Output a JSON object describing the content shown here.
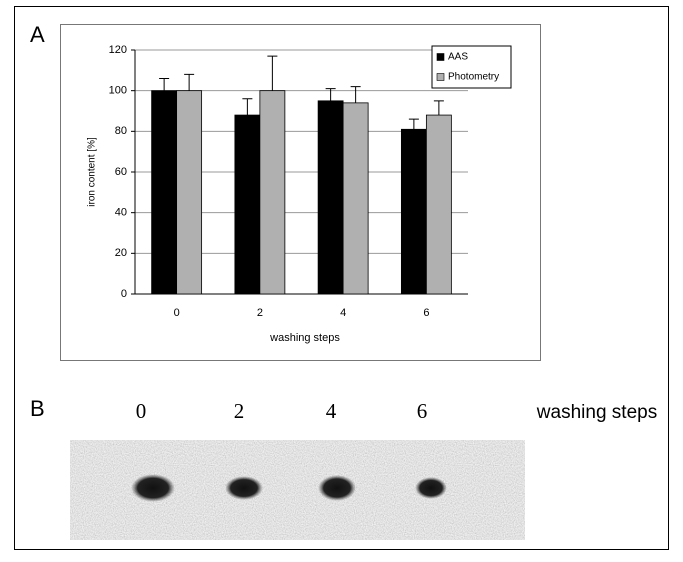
{
  "chart_data": {
    "type": "bar",
    "panel_label": "A",
    "x_label": "washing steps",
    "y_label": "iron content [%]",
    "categories": [
      "0",
      "2",
      "4",
      "6"
    ],
    "series": [
      {
        "name": "AAS",
        "color": "#000000",
        "values": [
          100,
          88,
          95,
          81
        ],
        "errors": [
          6,
          8,
          6,
          5
        ]
      },
      {
        "name": "Photometry",
        "color": "#b0b0b0",
        "values": [
          100,
          100,
          94,
          88
        ],
        "errors": [
          8,
          17,
          8,
          7
        ]
      }
    ],
    "ylim": [
      0,
      120
    ],
    "yticks": [
      0,
      20,
      40,
      60,
      80,
      100,
      120
    ],
    "grid": true,
    "legend": "top-right"
  },
  "panel_b": {
    "label": "B",
    "lanes": [
      "0",
      "2",
      "4",
      "6"
    ],
    "axis_label": "washing steps"
  }
}
